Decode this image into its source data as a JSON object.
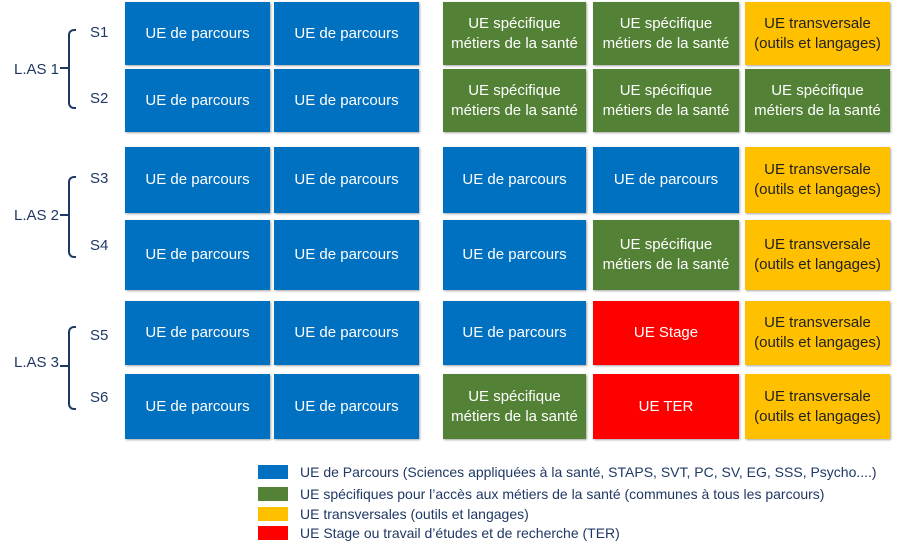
{
  "years": [
    {
      "label": "L.AS 1",
      "semesters": [
        "S1",
        "S2"
      ]
    },
    {
      "label": "L.AS 2",
      "semesters": [
        "S3",
        "S4"
      ]
    },
    {
      "label": "L.AS 3",
      "semesters": [
        "S5",
        "S6"
      ]
    }
  ],
  "rows": [
    {
      "semester": "S1",
      "cells": [
        {
          "text": "UE de parcours",
          "type": "parcours"
        },
        {
          "text": "UE de parcours",
          "type": "parcours"
        },
        {
          "text": "UE spécifique\nmétiers de la santé",
          "type": "specifique"
        },
        {
          "text": "UE spécifique\nmétiers de la santé",
          "type": "specifique"
        },
        {
          "text": "UE transversale\n(outils et langages)",
          "type": "transversale"
        }
      ]
    },
    {
      "semester": "S2",
      "cells": [
        {
          "text": "UE de parcours",
          "type": "parcours"
        },
        {
          "text": "UE de parcours",
          "type": "parcours"
        },
        {
          "text": "UE spécifique\nmétiers de la santé",
          "type": "specifique"
        },
        {
          "text": "UE spécifique\nmétiers de la santé",
          "type": "specifique"
        },
        {
          "text": "UE spécifique\nmétiers de la santé",
          "type": "specifique"
        }
      ]
    },
    {
      "semester": "S3",
      "cells": [
        {
          "text": "UE de parcours",
          "type": "parcours"
        },
        {
          "text": "UE de parcours",
          "type": "parcours"
        },
        {
          "text": "UE de parcours",
          "type": "parcours"
        },
        {
          "text": "UE de parcours",
          "type": "parcours"
        },
        {
          "text": "UE transversale\n(outils et langages)",
          "type": "transversale"
        }
      ]
    },
    {
      "semester": "S4",
      "cells": [
        {
          "text": "UE de parcours",
          "type": "parcours"
        },
        {
          "text": "UE de parcours",
          "type": "parcours"
        },
        {
          "text": "UE de parcours",
          "type": "parcours"
        },
        {
          "text": "UE spécifique\nmétiers de la santé",
          "type": "specifique"
        },
        {
          "text": "UE transversale\n(outils et langages)",
          "type": "transversale"
        }
      ]
    },
    {
      "semester": "S5",
      "cells": [
        {
          "text": "UE de parcours",
          "type": "parcours"
        },
        {
          "text": "UE de parcours",
          "type": "parcours"
        },
        {
          "text": "UE de parcours",
          "type": "parcours"
        },
        {
          "text": "UE Stage",
          "type": "stage"
        },
        {
          "text": "UE transversale\n(outils et langages)",
          "type": "transversale"
        }
      ]
    },
    {
      "semester": "S6",
      "cells": [
        {
          "text": "UE de parcours",
          "type": "parcours"
        },
        {
          "text": "UE de parcours",
          "type": "parcours"
        },
        {
          "text": "UE spécifique\nmétiers de la santé",
          "type": "specifique"
        },
        {
          "text": "UE TER",
          "type": "stage"
        },
        {
          "text": "UE transversale\n(outils et langages)",
          "type": "transversale"
        }
      ]
    }
  ],
  "legend": [
    {
      "type": "parcours",
      "text": "UE de Parcours (Sciences appliquées à la santé, STAPS, SVT, PC, SV, EG, SSS, Psycho....)"
    },
    {
      "type": "specifique",
      "text": "UE spécifiques pour l’accès aux métiers de la santé (communes à tous les parcours)"
    },
    {
      "type": "transversale",
      "text": "UE transversales (outils et langages)"
    },
    {
      "type": "stage",
      "text": "UE Stage ou travail d’études et de recherche (TER)"
    }
  ],
  "colors": {
    "parcours": "#0070c0",
    "specifique": "#538135",
    "transversale": "#ffc000",
    "stage": "#ff0000"
  }
}
